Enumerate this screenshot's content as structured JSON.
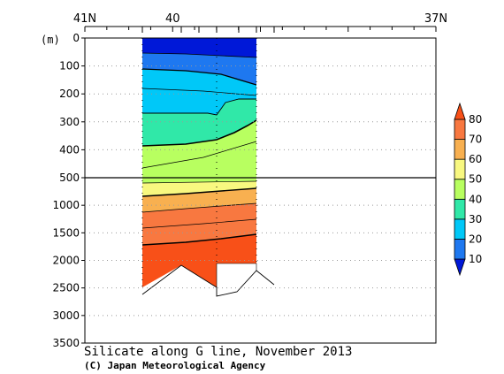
{
  "chart_data": {
    "type": "heatmap",
    "title": "Silicate along G line, November 2013",
    "credit": "(C) Japan Meteorological Agency",
    "ylabel": "(m)",
    "x_ticks": [
      {
        "label": "41N",
        "lat": 41
      },
      {
        "label": "40",
        "lat": 40
      },
      {
        "label": "37N",
        "lat": 37
      }
    ],
    "y_ticks_upper": [
      "0",
      "100",
      "200",
      "300",
      "400",
      "500"
    ],
    "y_ticks_lower": [
      "500",
      "1000",
      "1500",
      "2000",
      "2500",
      "3000",
      "3500"
    ],
    "colorbar": {
      "levels": [
        10,
        20,
        30,
        40,
        50,
        60,
        70,
        80
      ],
      "labels": [
        "10",
        "20",
        "30",
        "40",
        "50",
        "60",
        "70",
        "80"
      ],
      "colors": [
        "#0018d8",
        "#1e78f0",
        "#00c8f8",
        "#30e8a8",
        "#b8ff60",
        "#f8f880",
        "#f8b050",
        "#f87840",
        "#f85018"
      ]
    },
    "section_lat_range": [
      40.25,
      39.5
    ],
    "bottom_depth_m": 2500,
    "grid": false
  }
}
